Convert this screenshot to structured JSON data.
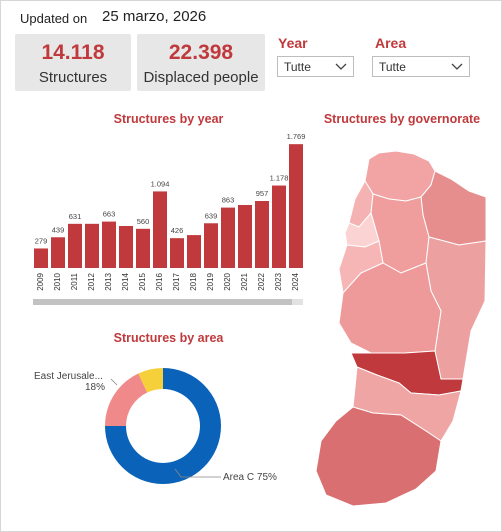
{
  "header": {
    "updated_label": "Updated on",
    "updated_date": "25 marzo, 2026"
  },
  "cards": [
    {
      "value": "14.118",
      "label": "Structures"
    },
    {
      "value": "22.398",
      "label": "Displaced people"
    }
  ],
  "slicers": {
    "year": {
      "title": "Year",
      "selected": "Tutte"
    },
    "area": {
      "title": "Area",
      "selected": "Tutte"
    }
  },
  "titles": {
    "by_year": "Structures by year",
    "by_governorate": "Structures by governorate",
    "by_area": "Structures by area"
  },
  "colors": {
    "accent": "#c0393c",
    "bar": "#c0393c",
    "blue": "#0a63b8",
    "pink": "#f08a8a",
    "yellow": "#f6d03b"
  },
  "chart_data": [
    {
      "type": "bar",
      "title": "Structures by year",
      "categories": [
        "2009",
        "2010",
        "2011",
        "2012",
        "2013",
        "2014",
        "2015",
        "2016",
        "2017",
        "2018",
        "2019",
        "2020",
        "2021",
        "2022",
        "2023",
        "2024"
      ],
      "values": [
        279,
        439,
        631,
        631,
        663,
        600,
        560,
        1094,
        426,
        470,
        639,
        863,
        900,
        957,
        1178,
        1769
      ],
      "data_labels": [
        "279",
        "439",
        "631",
        "",
        "663",
        "",
        "560",
        "1.094",
        "426",
        "",
        "639",
        "863",
        "",
        "957",
        "1.178",
        "1.769"
      ],
      "ylim": [
        0,
        1800
      ]
    },
    {
      "type": "pie",
      "title": "Structures by area",
      "categories": [
        "Area C",
        "East Jerusalem",
        "Other"
      ],
      "values": [
        75,
        18,
        7
      ],
      "labels": [
        "Area C 75%",
        "East Jerusale...",
        "18%"
      ]
    }
  ]
}
